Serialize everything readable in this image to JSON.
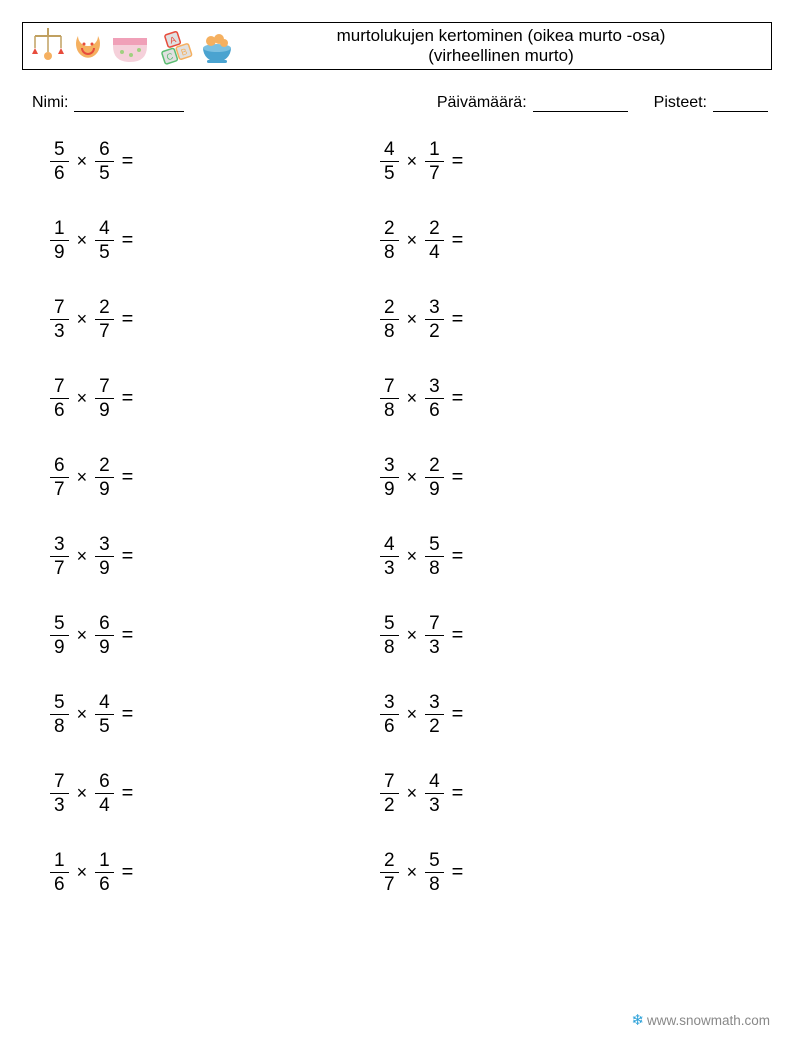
{
  "header": {
    "title_line1": "murtolukujen kertominen (oikea murto -osa)",
    "title_line2": "(virheellinen murto)",
    "icons": [
      {
        "name": "mobile-icon",
        "colors": [
          "#e74c3c",
          "#c0a060"
        ]
      },
      {
        "name": "bib-icon",
        "colors": [
          "#f5b060",
          "#e74c3c"
        ]
      },
      {
        "name": "diaper-icon",
        "colors": [
          "#f0a0b8",
          "#a0d080"
        ]
      },
      {
        "name": "blocks-icon",
        "colors": [
          "#e74c3c",
          "#f5b060",
          "#5bbd72"
        ]
      },
      {
        "name": "bowl-icon",
        "colors": [
          "#4aa3d0",
          "#f5b060"
        ]
      }
    ]
  },
  "info": {
    "name_label": "Nimi:",
    "date_label": "Päivämäärä:",
    "score_label": "Pisteet:"
  },
  "symbols": {
    "times": "×",
    "equals": "="
  },
  "problems": {
    "left": [
      {
        "a": {
          "n": 5,
          "d": 6
        },
        "b": {
          "n": 6,
          "d": 5
        }
      },
      {
        "a": {
          "n": 1,
          "d": 9
        },
        "b": {
          "n": 4,
          "d": 5
        }
      },
      {
        "a": {
          "n": 7,
          "d": 3
        },
        "b": {
          "n": 2,
          "d": 7
        }
      },
      {
        "a": {
          "n": 7,
          "d": 6
        },
        "b": {
          "n": 7,
          "d": 9
        }
      },
      {
        "a": {
          "n": 6,
          "d": 7
        },
        "b": {
          "n": 2,
          "d": 9
        }
      },
      {
        "a": {
          "n": 3,
          "d": 7
        },
        "b": {
          "n": 3,
          "d": 9
        }
      },
      {
        "a": {
          "n": 5,
          "d": 9
        },
        "b": {
          "n": 6,
          "d": 9
        }
      },
      {
        "a": {
          "n": 5,
          "d": 8
        },
        "b": {
          "n": 4,
          "d": 5
        }
      },
      {
        "a": {
          "n": 7,
          "d": 3
        },
        "b": {
          "n": 6,
          "d": 4
        }
      },
      {
        "a": {
          "n": 1,
          "d": 6
        },
        "b": {
          "n": 1,
          "d": 6
        }
      }
    ],
    "right": [
      {
        "a": {
          "n": 4,
          "d": 5
        },
        "b": {
          "n": 1,
          "d": 7
        }
      },
      {
        "a": {
          "n": 2,
          "d": 8
        },
        "b": {
          "n": 2,
          "d": 4
        }
      },
      {
        "a": {
          "n": 2,
          "d": 8
        },
        "b": {
          "n": 3,
          "d": 2
        }
      },
      {
        "a": {
          "n": 7,
          "d": 8
        },
        "b": {
          "n": 3,
          "d": 6
        }
      },
      {
        "a": {
          "n": 3,
          "d": 9
        },
        "b": {
          "n": 2,
          "d": 9
        }
      },
      {
        "a": {
          "n": 4,
          "d": 3
        },
        "b": {
          "n": 5,
          "d": 8
        }
      },
      {
        "a": {
          "n": 5,
          "d": 8
        },
        "b": {
          "n": 7,
          "d": 3
        }
      },
      {
        "a": {
          "n": 3,
          "d": 6
        },
        "b": {
          "n": 3,
          "d": 2
        }
      },
      {
        "a": {
          "n": 7,
          "d": 2
        },
        "b": {
          "n": 4,
          "d": 3
        }
      },
      {
        "a": {
          "n": 2,
          "d": 7
        },
        "b": {
          "n": 5,
          "d": 8
        }
      }
    ]
  },
  "footer": {
    "url": "www.snowmath.com"
  },
  "style": {
    "page_bg": "#ffffff",
    "text_color": "#000000",
    "border_color": "#000000",
    "title_fontsize": 17,
    "info_fontsize": 16,
    "prob_fontsize": 20,
    "frac_fontsize": 19,
    "row_gap": 36,
    "col1_width": 330,
    "col2_width": 330,
    "footer_color": "#555555",
    "flake_color": "#2aa0d8"
  }
}
